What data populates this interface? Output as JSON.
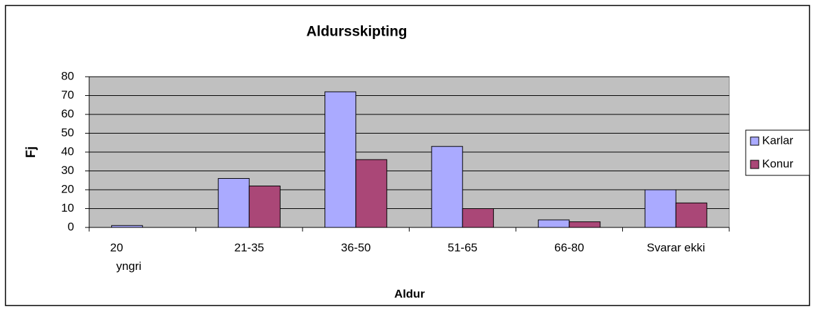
{
  "chart_data": {
    "type": "bar",
    "title": "Aldursskipting",
    "x_label": "Aldur",
    "y_label": "Fj",
    "categories": [
      "20\nyngri",
      "21-35",
      "36-50",
      "51-65",
      "66-80",
      "Svarar ekki"
    ],
    "series": [
      {
        "name": "Karlar",
        "color": "#aaaaff",
        "values": [
          1,
          26,
          72,
          43,
          4,
          20
        ]
      },
      {
        "name": "Konur",
        "color": "#aa4777",
        "values": [
          0,
          22,
          36,
          10,
          3,
          13
        ]
      }
    ],
    "ylim": [
      0,
      80
    ],
    "yticks": [
      0,
      10,
      20,
      30,
      40,
      50,
      60,
      70,
      80
    ],
    "grid": true,
    "legend": "right"
  }
}
